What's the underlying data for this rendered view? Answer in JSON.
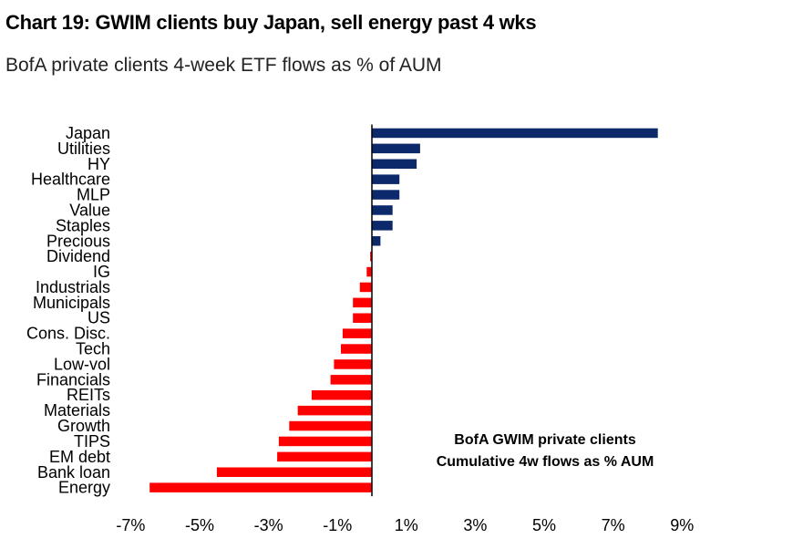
{
  "header": {
    "title": "Chart 19: GWIM clients buy Japan, sell energy past 4 wks",
    "subtitle": "BofA private clients 4-week ETF flows as % of AUM"
  },
  "colors": {
    "positive": "#0c2a6b",
    "negative": "#ff0000",
    "axis": "#000000"
  },
  "chart_data": {
    "type": "bar",
    "orientation": "horizontal",
    "title": "Chart 19: GWIM clients buy Japan, sell energy past 4 wks",
    "subtitle": "BofA private clients 4-week ETF flows as % of AUM",
    "categories": [
      "Japan",
      "Utilities",
      "HY",
      "Healthcare",
      "MLP",
      "Value",
      "Staples",
      "Precious",
      "Dividend",
      "IG",
      "Industrials",
      "Municipals",
      "US",
      "Cons. Disc.",
      "Tech",
      "Low-vol",
      "Financials",
      "REITs",
      "Materials",
      "Growth",
      "TIPS",
      "EM debt",
      "Bank loan",
      "Energy"
    ],
    "values": [
      8.3,
      1.4,
      1.3,
      0.8,
      0.8,
      0.6,
      0.6,
      0.25,
      -0.05,
      -0.15,
      -0.35,
      -0.55,
      -0.55,
      -0.85,
      -0.9,
      -1.1,
      -1.2,
      -1.75,
      -2.15,
      -2.4,
      -2.7,
      -2.75,
      -4.5,
      -6.45
    ],
    "xticks": [
      -7,
      -5,
      -3,
      -1,
      1,
      3,
      5,
      7,
      9
    ],
    "xtick_labels": [
      "-7%",
      "-5%",
      "-3%",
      "-1%",
      "1%",
      "3%",
      "5%",
      "7%",
      "9%"
    ],
    "xlim": [
      -7.2,
      9.4
    ],
    "xlabel": "",
    "ylabel": "",
    "grid": false,
    "annotation": [
      "BofA GWIM private clients",
      "Cumulative 4w flows as % AUM"
    ]
  }
}
